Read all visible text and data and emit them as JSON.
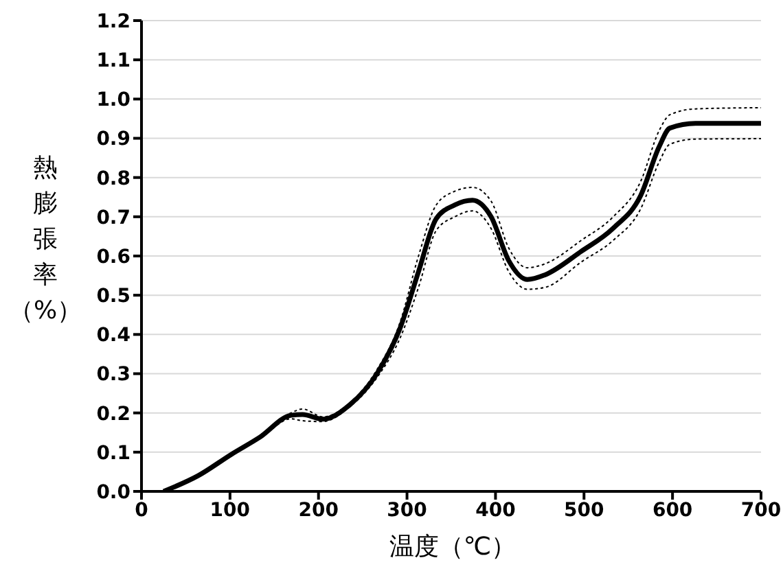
{
  "chart_data": {
    "type": "line",
    "xlabel": "温度（℃）",
    "ylabel": "熱膨張率（%）",
    "x": [
      25,
      64,
      102,
      133,
      169,
      182,
      205,
      235,
      266,
      292,
      313,
      333,
      354,
      374,
      395,
      415,
      436,
      456,
      497,
      533,
      564,
      585,
      597,
      626,
      700
    ],
    "series": [
      {
        "color": "#000000",
        "values": [
          0,
          0.04,
          0.095,
          0.14,
          0.2,
          0.21,
          0.19,
          0.225,
          0.31,
          0.43,
          0.6,
          0.73,
          0.765,
          0.775,
          0.74,
          0.62,
          0.57,
          0.58,
          0.64,
          0.7,
          0.79,
          0.92,
          0.96,
          0.975,
          0.978
        ],
        "line_style": "dotted"
      },
      {
        "color": "#000000",
        "values": [
          0,
          0.04,
          0.095,
          0.133,
          0.185,
          0.18,
          0.178,
          0.215,
          0.29,
          0.39,
          0.52,
          0.665,
          0.7,
          0.715,
          0.67,
          0.56,
          0.515,
          0.52,
          0.585,
          0.64,
          0.72,
          0.84,
          0.885,
          0.898,
          0.899
        ],
        "line_style": "dotted"
      },
      {
        "color": "#000000",
        "values": [
          0,
          0.04,
          0.095,
          0.137,
          0.194,
          0.196,
          0.184,
          0.22,
          0.3,
          0.415,
          0.56,
          0.695,
          0.73,
          0.742,
          0.7,
          0.588,
          0.54,
          0.552,
          0.612,
          0.671,
          0.754,
          0.879,
          0.926,
          0.938,
          0.938
        ],
        "line_style": "solid"
      }
    ],
    "xlim": [
      0,
      700
    ],
    "xticks": [
      0,
      100,
      200,
      300,
      400,
      500,
      600,
      700
    ],
    "ylim": [
      0,
      1.2
    ],
    "yticks": [
      {
        "value": 0,
        "label": "0.0"
      },
      0.1,
      0.2,
      0.3,
      0.4,
      0.5,
      0.6,
      0.7,
      0.8,
      0.9,
      {
        "value": 1,
        "label": "1.0"
      },
      1.1,
      1.2
    ],
    "grid": "y"
  }
}
